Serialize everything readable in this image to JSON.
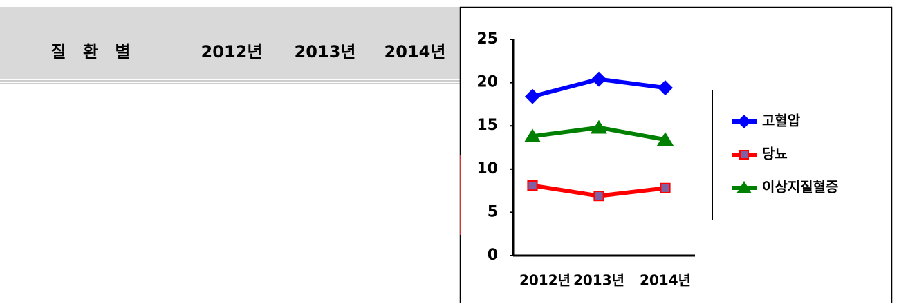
{
  "table": {
    "header": [
      "질 환 별",
      "2012년",
      "2013년",
      "2014년"
    ]
  },
  "chart_data": {
    "type": "line",
    "categories": [
      "2012년",
      "2013년",
      "2014년"
    ],
    "series": [
      {
        "name": "고혈압",
        "color": "#0000ff",
        "marker": "diamond",
        "values": [
          18.4,
          20.4,
          19.4
        ]
      },
      {
        "name": "당뇨",
        "color": "#ff0000",
        "marker": "square",
        "values": [
          8.1,
          6.9,
          7.8
        ]
      },
      {
        "name": "이상지질혈증",
        "color": "#008000",
        "marker": "triangle",
        "values": [
          13.8,
          14.8,
          13.4
        ]
      }
    ],
    "ylim": [
      0,
      25
    ],
    "yticks": [
      0,
      5,
      10,
      15,
      20,
      25
    ],
    "legend": "right"
  }
}
